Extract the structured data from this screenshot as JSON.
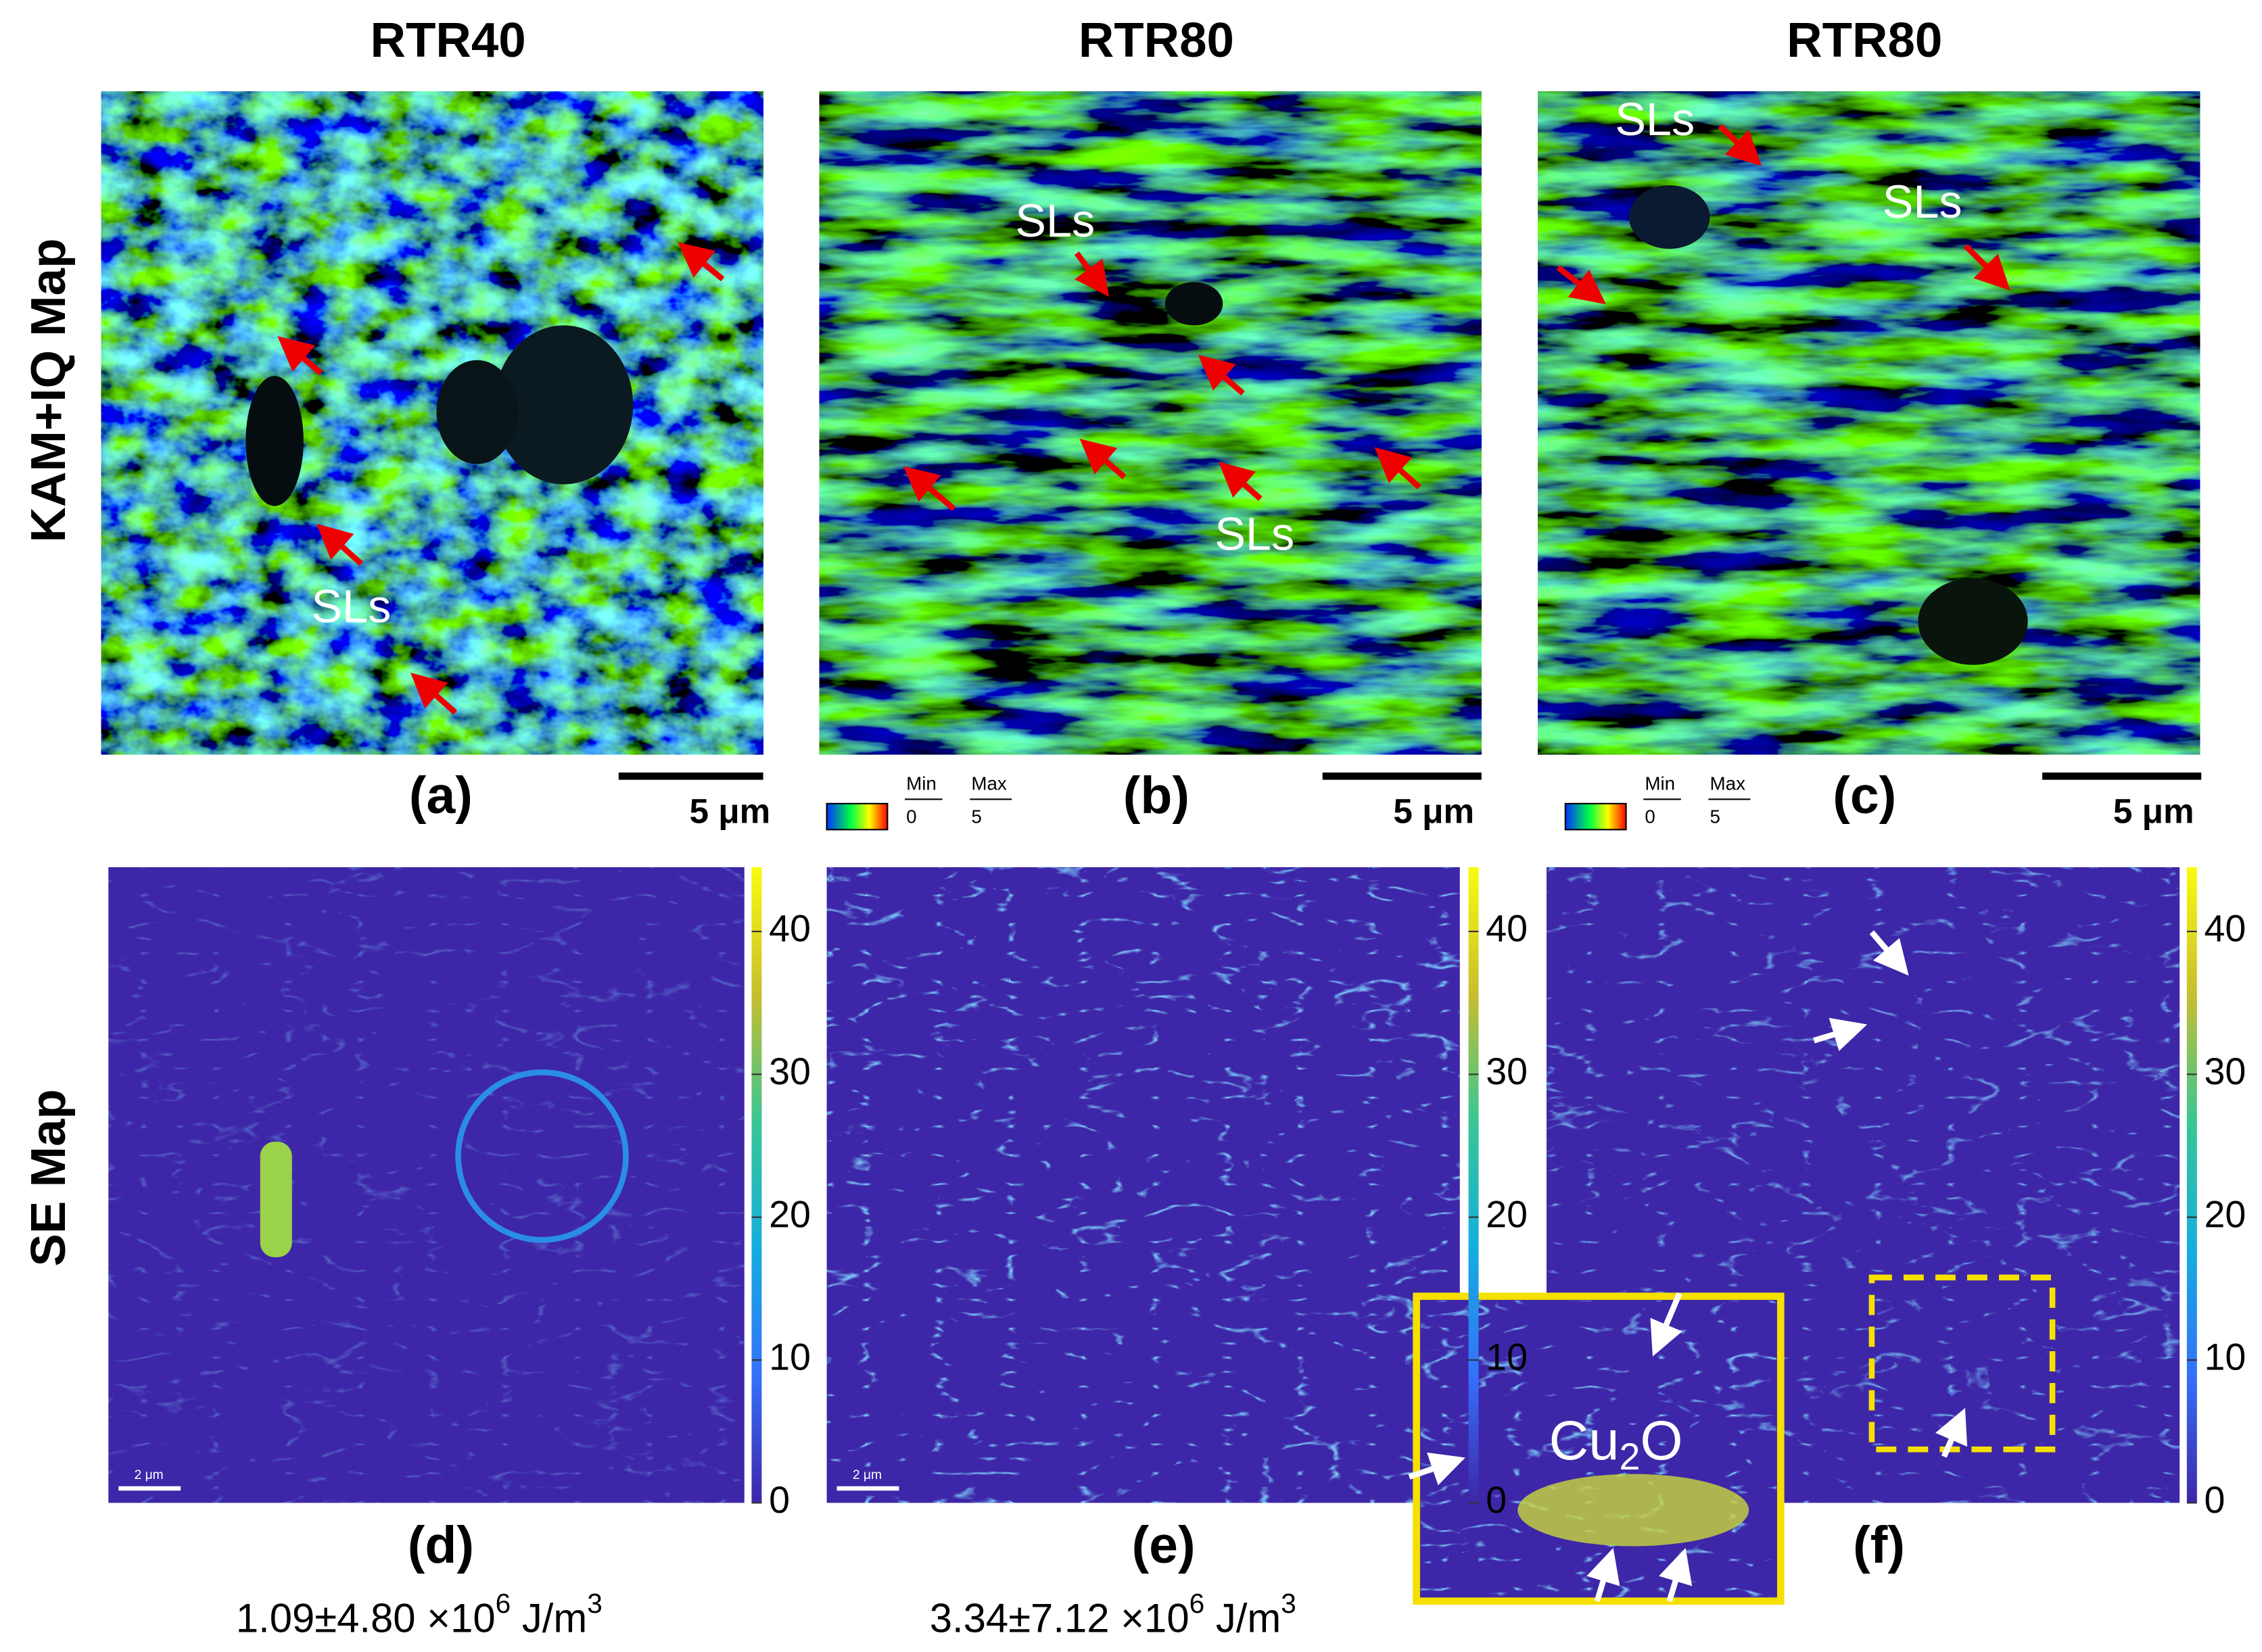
{
  "columns": [
    "RTR40",
    "RTR80",
    "RTR80"
  ],
  "rows": [
    "KAM+IQ Map",
    "SE Map"
  ],
  "panels": {
    "top": [
      "(a)",
      "(b)",
      "(c)"
    ],
    "bottom": [
      "(d)",
      "(e)",
      "(f)"
    ]
  },
  "annotations": [
    "SLs",
    "SLs",
    "SLs",
    "SLs",
    "SLs"
  ],
  "scale_bar": "5 μm",
  "small_scale_bar": "2 μm",
  "kam_legend": {
    "min_label": "Min",
    "max_label": "Max",
    "min": 0,
    "max": 5
  },
  "colorbar": {
    "lim": [
      0,
      44.5
    ],
    "ticks": [
      0,
      10,
      20,
      30,
      40
    ]
  },
  "inset": {
    "label": [
      "Cu",
      "2",
      "O"
    ]
  },
  "energy": [
    {
      "mean": "1.09±4.80 ×10",
      "exp": "6",
      "unit": " J/m",
      "unit_exp": "3"
    },
    {
      "mean": "3.34±7.12 ×10",
      "exp": "6",
      "unit": " J/m",
      "unit_exp": "3"
    }
  ]
}
